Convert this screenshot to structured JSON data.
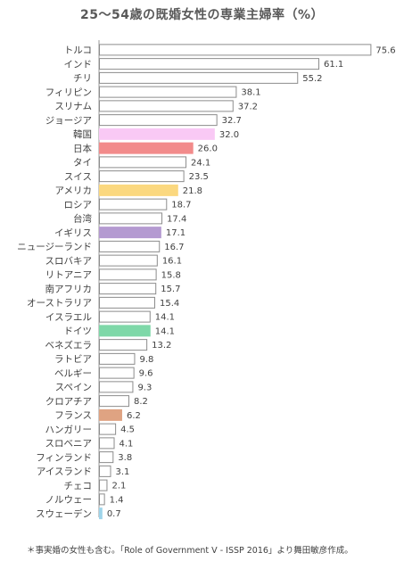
{
  "chart_data": {
    "type": "bar",
    "orientation": "horizontal",
    "title": "25〜54歳の既婚女性の専業主婦率（%）",
    "xlabel": "",
    "ylabel": "",
    "xlim": [
      0,
      76
    ],
    "grid": false,
    "legend": "none",
    "categories": [
      "トルコ",
      "インド",
      "チリ",
      "フィリピン",
      "スリナム",
      "ジョージア",
      "韓国",
      "日本",
      "タイ",
      "スイス",
      "アメリカ",
      "ロシア",
      "台湾",
      "イギリス",
      "ニュージーランド",
      "スロバキア",
      "リトアニア",
      "南アフリカ",
      "オーストラリア",
      "イスラエル",
      "ドイツ",
      "ベネズエラ",
      "ラトビア",
      "ベルギー",
      "スペイン",
      "クロアチア",
      "フランス",
      "ハンガリー",
      "スロベニア",
      "フィンランド",
      "アイスランド",
      "チェコ",
      "ノルウェー",
      "スウェーデン"
    ],
    "values": [
      75.6,
      61.1,
      55.2,
      38.1,
      37.2,
      32.7,
      32.0,
      26.0,
      24.1,
      23.5,
      21.8,
      18.7,
      17.4,
      17.1,
      16.7,
      16.1,
      15.8,
      15.7,
      15.4,
      14.1,
      14.1,
      13.2,
      9.8,
      9.6,
      9.3,
      8.2,
      6.2,
      4.5,
      4.1,
      3.8,
      3.1,
      2.1,
      1.4,
      0.7
    ],
    "value_labels": [
      "75.6",
      "61.1",
      "55.2",
      "38.1",
      "37.2",
      "32.7",
      "32.0",
      "26.0",
      "24.1",
      "23.5",
      "21.8",
      "18.7",
      "17.4",
      "17.1",
      "16.7",
      "16.1",
      "15.8",
      "15.7",
      "15.4",
      "14.1",
      "14.1",
      "13.2",
      "9.8",
      "9.6",
      "9.3",
      "8.2",
      "6.2",
      "4.5",
      "4.1",
      "3.8",
      "3.1",
      "2.1",
      "1.4",
      "0.7"
    ],
    "highlight_colors": {
      "韓国": "#f9c9f5",
      "日本": "#f28b8b",
      "アメリカ": "#fbd87f",
      "イギリス": "#b49ad1",
      "ドイツ": "#7ed8a8",
      "フランス": "#dfa382",
      "スウェーデン": "#9fd4ea"
    },
    "default_bar_fill": "#ffffff",
    "bar_stroke": "#8c8c8c"
  },
  "footnote": "＊事実婚の女性も含む。「Role of Government V - ISSP 2016」より舞田敏彦作成。"
}
